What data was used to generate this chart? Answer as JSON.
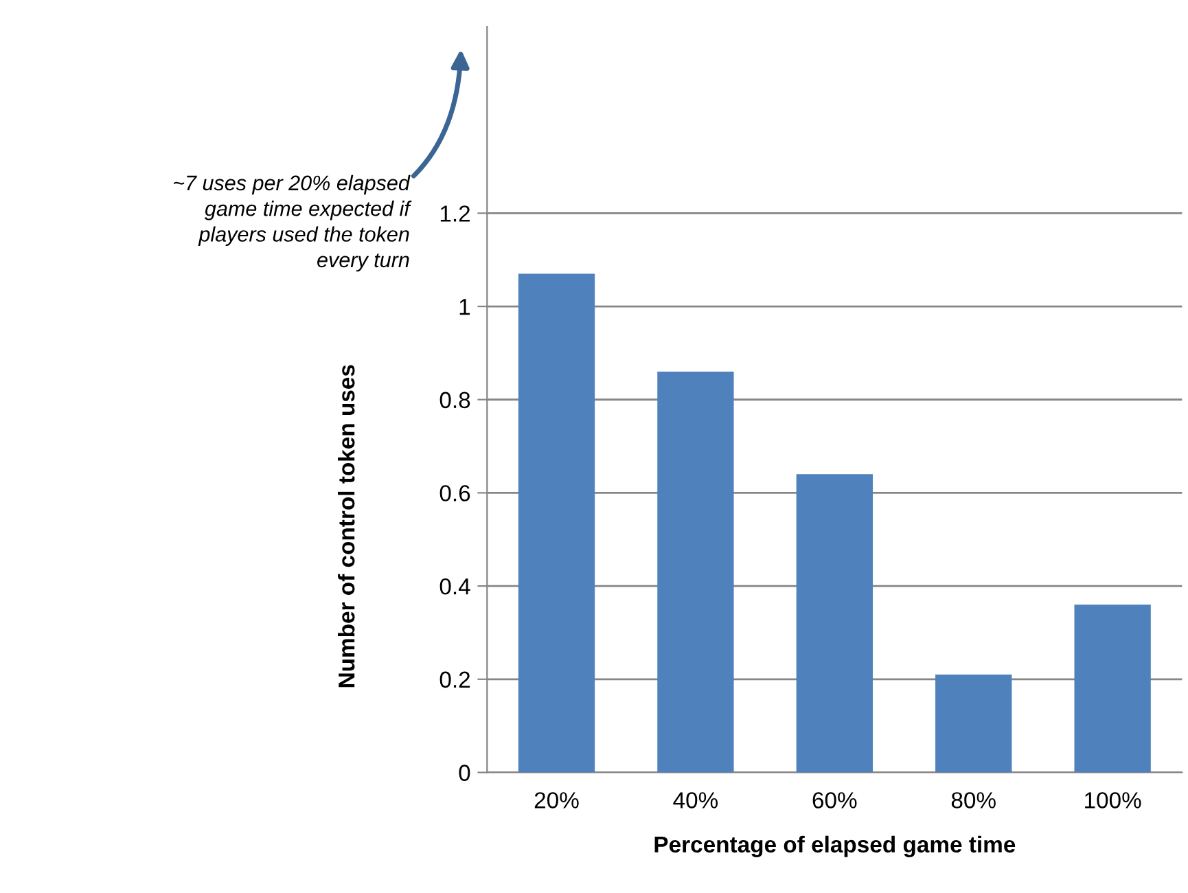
{
  "chart_data": {
    "type": "bar",
    "xlabel": "Percentage of elapsed game time",
    "ylabel": "Number of control token uses",
    "categories": [
      "20%",
      "40%",
      "60%",
      "80%",
      "100%"
    ],
    "series": [
      {
        "color": "#4f81bd",
        "values": [
          1.07,
          0.86,
          0.64,
          0.21,
          0.36
        ]
      }
    ],
    "ylim": [
      0,
      1.6
    ],
    "yticks": [
      0,
      0.2,
      0.4,
      0.6,
      0.8,
      1,
      1.2
    ],
    "grid": "y",
    "legend": false,
    "annotations": [
      "~7 uses per 20% elapsed\ngame time expected if\nplayers used the token\nevery turn"
    ]
  }
}
